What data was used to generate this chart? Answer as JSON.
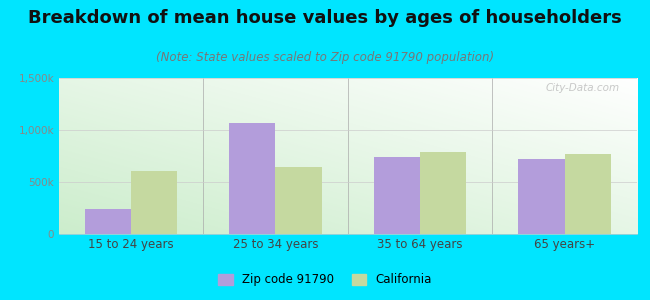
{
  "title": "Breakdown of mean house values by ages of householders",
  "subtitle": "(Note: State values scaled to Zip code 91790 population)",
  "categories": [
    "15 to 24 years",
    "25 to 34 years",
    "35 to 64 years",
    "65 years+"
  ],
  "zip_values": [
    240000,
    1070000,
    740000,
    720000
  ],
  "ca_values": [
    610000,
    640000,
    790000,
    770000
  ],
  "zip_color": "#b39ddb",
  "ca_color": "#c5d9a0",
  "ylim": [
    0,
    1500000
  ],
  "yticks": [
    0,
    500000,
    1000000,
    1500000
  ],
  "ytick_labels": [
    "0",
    "500k",
    "1,000k",
    "1,500k"
  ],
  "background_color": "#00e5ff",
  "title_fontsize": 13,
  "subtitle_fontsize": 8.5,
  "legend_zip": "Zip code 91790",
  "legend_ca": "California",
  "bar_width": 0.32,
  "watermark": "City-Data.com"
}
